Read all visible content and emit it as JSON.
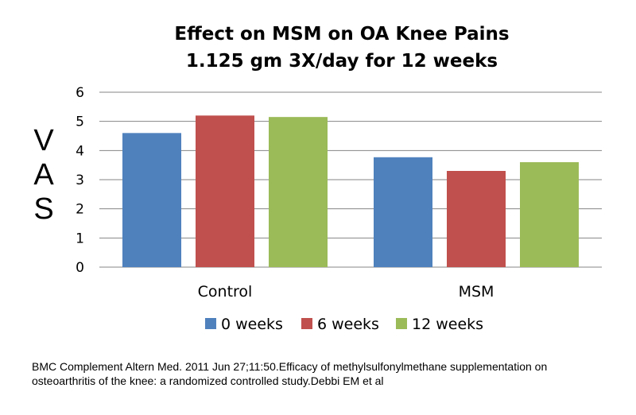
{
  "chart_data": {
    "type": "bar",
    "title_lines": [
      "Effect on MSM on OA Knee Pains",
      "1.125 gm 3X/day for 12 weeks"
    ],
    "ylabel_letters": [
      "V",
      "A",
      "S"
    ],
    "categories": [
      "Control",
      "MSM"
    ],
    "series": [
      {
        "name": "0 weeks",
        "color": "#4F81BD",
        "values": [
          4.6,
          3.77
        ]
      },
      {
        "name": "6 weeks",
        "color": "#C0504D",
        "values": [
          5.2,
          3.3
        ]
      },
      {
        "name": "12 weeks",
        "color": "#9BBB59",
        "values": [
          5.15,
          3.6
        ]
      }
    ],
    "yticks": [
      "0",
      "1",
      "2",
      "3",
      "4",
      "5",
      "6"
    ],
    "ylim": [
      0,
      6
    ],
    "grid": true,
    "legend_position": "bottom"
  },
  "citation": "BMC Complement Altern Med. 2011 Jun 27;11:50.Efficacy of methylsulfonylmethane supplementation on osteoarthritis of the knee:  a randomized controlled study.Debbi EM et al"
}
